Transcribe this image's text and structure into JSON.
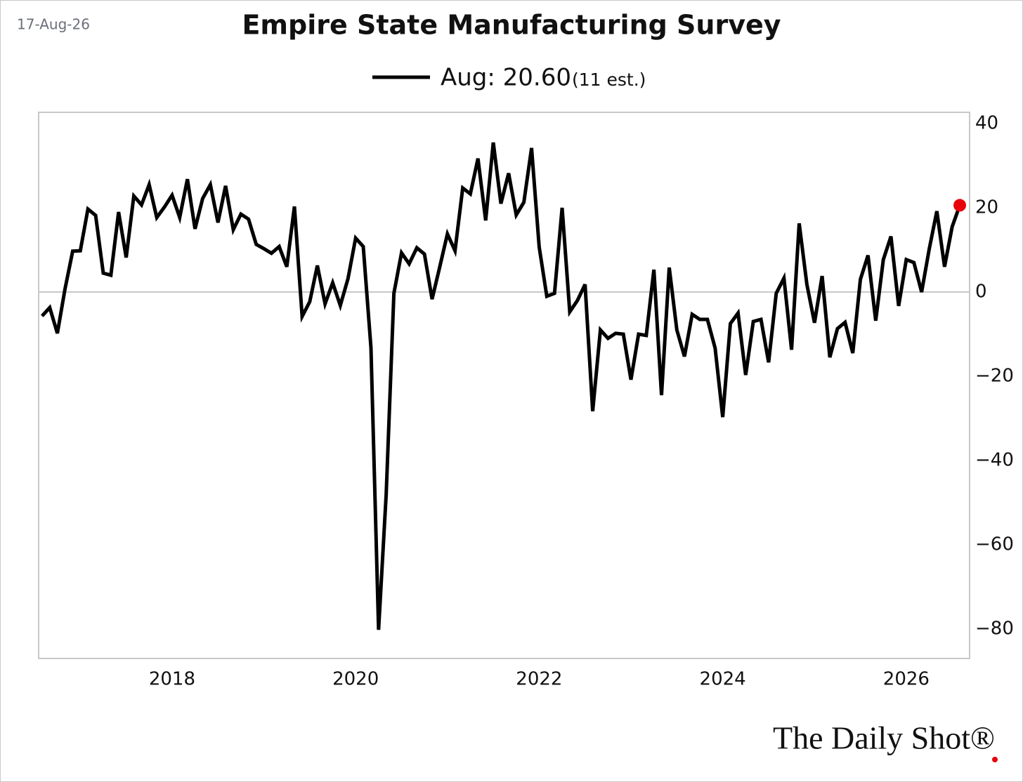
{
  "date_label": "17-Aug-26",
  "logo": "The Daily Shot®",
  "chart_data": {
    "type": "line",
    "title": "Empire State Manufacturing Survey",
    "legend_note": "(11 est.)",
    "x": [
      2016.583,
      2016.667,
      2016.75,
      2016.833,
      2016.917,
      2017,
      2017.083,
      2017.167,
      2017.25,
      2017.333,
      2017.417,
      2017.5,
      2017.583,
      2017.667,
      2017.75,
      2017.833,
      2017.917,
      2018,
      2018.083,
      2018.167,
      2018.25,
      2018.333,
      2018.417,
      2018.5,
      2018.583,
      2018.667,
      2018.75,
      2018.833,
      2018.917,
      2019,
      2019.083,
      2019.167,
      2019.25,
      2019.333,
      2019.417,
      2019.5,
      2019.583,
      2019.667,
      2019.75,
      2019.833,
      2019.917,
      2020,
      2020.083,
      2020.167,
      2020.25,
      2020.333,
      2020.417,
      2020.5,
      2020.583,
      2020.667,
      2020.75,
      2020.833,
      2020.917,
      2021,
      2021.083,
      2021.167,
      2021.25,
      2021.333,
      2021.417,
      2021.5,
      2021.583,
      2021.667,
      2021.75,
      2021.833,
      2021.917,
      2022,
      2022.083,
      2022.167,
      2022.25,
      2022.333,
      2022.417,
      2022.5,
      2022.583,
      2022.667,
      2022.75,
      2022.833,
      2022.917,
      2023,
      2023.083,
      2023.167,
      2023.25,
      2023.333,
      2023.417,
      2023.5,
      2023.583,
      2023.667,
      2023.75,
      2023.833,
      2023.917,
      2024,
      2024.083,
      2024.167,
      2024.25,
      2024.333,
      2024.417,
      2024.5,
      2024.583,
      2024.667,
      2024.75,
      2024.833,
      2024.917,
      2025,
      2025.083,
      2025.167,
      2025.25,
      2025.333,
      2025.417,
      2025.5,
      2025.583,
      2025.667,
      2025.75,
      2025.833,
      2025.917,
      2026,
      2026.083,
      2026.167,
      2026.25,
      2026.333,
      2026.417,
      2026.5,
      2026.583
    ],
    "series": [
      {
        "name": "Aug: 20.60",
        "color": "#000000",
        "highlight_color": "#e8000b",
        "values": [
          -5.7,
          -3.7,
          -9.8,
          0.7,
          9.7,
          9.8,
          19.7,
          18.2,
          4.5,
          4.0,
          19.0,
          8.2,
          22.8,
          20.7,
          25.5,
          17.7,
          20.2,
          23.0,
          17.7,
          26.8,
          15.0,
          22.2,
          25.5,
          16.5,
          25.2,
          14.8,
          18.5,
          17.3,
          11.3,
          10.3,
          9.2,
          10.8,
          6.0,
          20.3,
          -5.8,
          -2.3,
          6.3,
          -2.8,
          2.2,
          -3.2,
          3.2,
          12.8,
          10.8,
          -13.2,
          -80.2,
          -48.0,
          -0.3,
          9.3,
          6.7,
          10.5,
          9.0,
          -1.7,
          6.0,
          13.8,
          9.8,
          24.7,
          23.3,
          31.7,
          17.0,
          35.5,
          21.0,
          28.2,
          18.3,
          21.3,
          34.2,
          10.7,
          -1.0,
          -0.3,
          20.0,
          -4.7,
          -2.0,
          1.8,
          -28.3,
          -9.0,
          -11.0,
          -9.8,
          -10.0,
          -20.8,
          -10.0,
          -10.3,
          5.3,
          -24.5,
          5.8,
          -9.0,
          -15.3,
          -5.3,
          -6.5,
          -6.5,
          -13.3,
          -29.7,
          -7.5,
          -5.0,
          -19.7,
          -7.0,
          -6.5,
          -16.7,
          -0.3,
          3.3,
          -13.7,
          16.3,
          1.8,
          -7.3,
          3.8,
          -15.5,
          -8.7,
          -7.2,
          -14.5,
          3.0,
          8.7,
          -6.8,
          7.7,
          13.2,
          -3.3,
          7.7,
          7.0,
          0,
          10.2,
          19.2,
          6.0,
          15.5,
          20.6
        ]
      }
    ],
    "xlim": [
      2016.546,
      2026.69
    ],
    "xticks": [
      2018,
      2020,
      2022,
      2024,
      2026
    ],
    "ylim": [
      -87,
      42.67
    ],
    "yticks": [
      {
        "value": -80,
        "label": "−80"
      },
      {
        "value": -60,
        "label": "−60"
      },
      {
        "value": -40,
        "label": "−40"
      },
      {
        "value": -20,
        "label": "−20"
      },
      0,
      20,
      40
    ],
    "zero_line": true
  }
}
